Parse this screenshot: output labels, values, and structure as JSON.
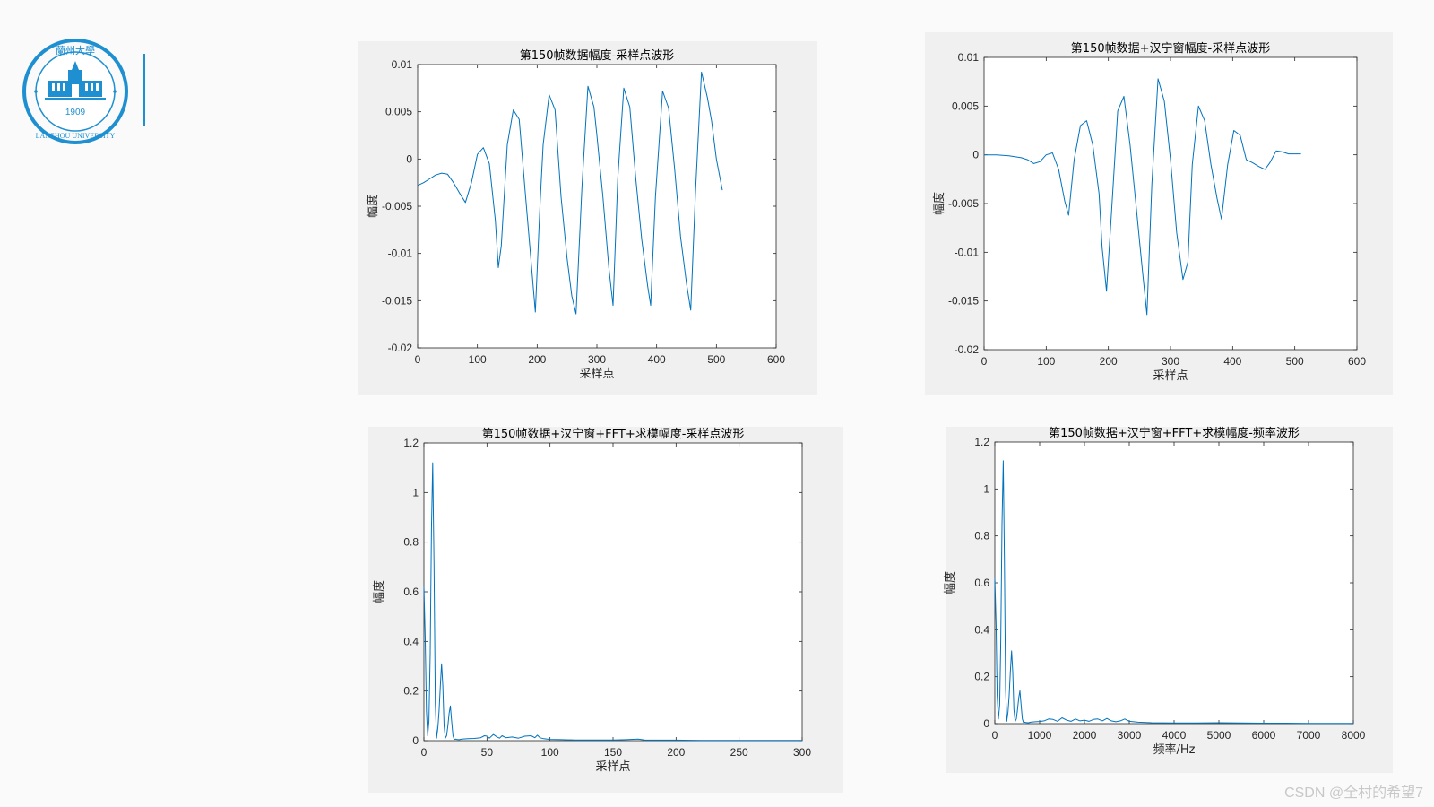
{
  "logo": {
    "name_cn": "蘭州大學",
    "name_en": "LANZHOU UNIVERSITY",
    "year": "1909",
    "color": "#1e8fd0"
  },
  "watermark": "CSDN @全村的希望7",
  "line_color": "#0072bd",
  "chart_data": [
    {
      "type": "line",
      "title": "第150帧数据幅度-采样点波形",
      "xlabel": "采样点",
      "ylabel": "幅度",
      "xlim": [
        0,
        600
      ],
      "ylim": [
        -0.02,
        0.01
      ],
      "xticks": [
        "0",
        "100",
        "200",
        "300",
        "400",
        "500",
        "600"
      ],
      "yticks": [
        "-0.02",
        "-0.015",
        "-0.01",
        "-0.005",
        "0",
        "0.005",
        "0.01"
      ],
      "series": [
        {
          "x": [
            0,
            10,
            20,
            30,
            40,
            50,
            60,
            70,
            80,
            90,
            100,
            110,
            120,
            130,
            135,
            140,
            150,
            160,
            170,
            180,
            190,
            197,
            205,
            210,
            220,
            230,
            240,
            250,
            258,
            265,
            275,
            285,
            295,
            300,
            310,
            320,
            327,
            335,
            345,
            355,
            365,
            375,
            385,
            390,
            398,
            410,
            420,
            430,
            440,
            450,
            457,
            465,
            475,
            485,
            492,
            500,
            510
          ],
          "y": [
            -0.0028,
            -0.0025,
            -0.0021,
            -0.0017,
            -0.0015,
            -0.0016,
            -0.0025,
            -0.0036,
            -0.0046,
            -0.0025,
            0.0005,
            0.0012,
            -0.0005,
            -0.0065,
            -0.0115,
            -0.0092,
            0.0015,
            0.0052,
            0.0042,
            -0.0035,
            -0.011,
            -0.0162,
            -0.0045,
            0.0015,
            0.0068,
            0.0052,
            -0.004,
            -0.0105,
            -0.0145,
            -0.0164,
            -0.003,
            0.0077,
            0.0055,
            0.0025,
            -0.004,
            -0.0115,
            -0.0155,
            -0.002,
            0.0075,
            0.0055,
            -0.002,
            -0.0085,
            -0.0135,
            -0.0155,
            -0.004,
            0.0072,
            0.0054,
            -0.001,
            -0.0082,
            -0.0132,
            -0.016,
            -0.0035,
            0.0092,
            0.0065,
            0.004,
            0.0,
            -0.0033
          ]
        }
      ]
    },
    {
      "type": "line",
      "title": "第150帧数据+汉宁窗幅度-采样点波形",
      "xlabel": "采样点",
      "ylabel": "幅度",
      "xlim": [
        0,
        600
      ],
      "ylim": [
        -0.02,
        0.01
      ],
      "xticks": [
        "0",
        "100",
        "200",
        "300",
        "400",
        "500",
        "600"
      ],
      "yticks": [
        "-0.02",
        "-0.015",
        "-0.01",
        "-0.005",
        "0",
        "0.005",
        "0.01"
      ],
      "series": [
        {
          "x": [
            0,
            20,
            40,
            60,
            70,
            80,
            90,
            100,
            110,
            120,
            130,
            136,
            145,
            155,
            165,
            175,
            185,
            190,
            197,
            205,
            215,
            225,
            235,
            245,
            255,
            262,
            270,
            280,
            290,
            300,
            310,
            320,
            328,
            335,
            345,
            355,
            365,
            375,
            382,
            392,
            402,
            412,
            422,
            432,
            442,
            452,
            460,
            470,
            480,
            490,
            500,
            510
          ],
          "y": [
            0,
            0,
            -0.0001,
            -0.0003,
            -0.0005,
            -0.0009,
            -0.0007,
            0.0,
            0.0002,
            -0.0015,
            -0.0048,
            -0.0062,
            -0.0005,
            0.003,
            0.0035,
            0.001,
            -0.004,
            -0.0095,
            -0.014,
            -0.006,
            0.0045,
            0.006,
            0.001,
            -0.0055,
            -0.012,
            -0.0164,
            -0.003,
            0.0078,
            0.0055,
            -0.0005,
            -0.008,
            -0.0128,
            -0.011,
            -0.001,
            0.005,
            0.0035,
            -0.001,
            -0.0045,
            -0.0066,
            -0.001,
            0.0025,
            0.002,
            -0.0005,
            -0.0008,
            -0.0012,
            -0.0015,
            -0.0008,
            0.0004,
            0.0003,
            0.0001,
            0.0001,
            0.0001
          ]
        }
      ]
    },
    {
      "type": "line",
      "title": "第150帧数据+汉宁窗+FFT+求模幅度-采样点波形",
      "xlabel": "采样点",
      "ylabel": "幅度",
      "xlim": [
        0,
        300
      ],
      "ylim": [
        0,
        1.2
      ],
      "xticks": [
        "0",
        "50",
        "100",
        "150",
        "200",
        "250",
        "300"
      ],
      "yticks": [
        "0",
        "0.2",
        "0.4",
        "0.6",
        "0.8",
        "1",
        "1.2"
      ],
      "series": [
        {
          "x": [
            0,
            1,
            2,
            3,
            4,
            5,
            6,
            7,
            8,
            9,
            10,
            11,
            12,
            13,
            14,
            15,
            16,
            17,
            18,
            19,
            20,
            21,
            22,
            23,
            24,
            25,
            26,
            28,
            30,
            35,
            40,
            45,
            48,
            50,
            52,
            55,
            58,
            60,
            62,
            65,
            70,
            75,
            80,
            85,
            88,
            90,
            92,
            95,
            100,
            110,
            120,
            130,
            140,
            150,
            160,
            170,
            175,
            180,
            200,
            220,
            240,
            260,
            280,
            300
          ],
          "y": [
            0.62,
            0.42,
            0.12,
            0.02,
            0.08,
            0.35,
            0.85,
            1.12,
            0.7,
            0.15,
            0.01,
            0.05,
            0.12,
            0.22,
            0.31,
            0.22,
            0.06,
            0.01,
            0.02,
            0.06,
            0.11,
            0.14,
            0.08,
            0.02,
            0.005,
            0.006,
            0.005,
            0.004,
            0.006,
            0.008,
            0.009,
            0.012,
            0.02,
            0.018,
            0.01,
            0.025,
            0.015,
            0.01,
            0.02,
            0.012,
            0.015,
            0.01,
            0.018,
            0.02,
            0.012,
            0.022,
            0.012,
            0.008,
            0.005,
            0.004,
            0.003,
            0.003,
            0.003,
            0.003,
            0.004,
            0.006,
            0.003,
            0.002,
            0.002,
            0.001,
            0.001,
            0.001,
            0.001,
            0.001
          ]
        }
      ]
    },
    {
      "type": "line",
      "title": "第150帧数据+汉宁窗+FFT+求模幅度-频率波形",
      "xlabel": "频率/Hz",
      "ylabel": "幅度",
      "xlim": [
        0,
        8000
      ],
      "ylim": [
        0,
        1.2
      ],
      "xticks": [
        "0",
        "1000",
        "2000",
        "3000",
        "4000",
        "5000",
        "6000",
        "7000",
        "8000"
      ],
      "yticks": [
        "0",
        "0.2",
        "0.4",
        "0.6",
        "0.8",
        "1",
        "1.2"
      ],
      "series": [
        {
          "x": [
            0,
            27,
            53,
            80,
            107,
            133,
            160,
            187,
            213,
            240,
            267,
            293,
            320,
            347,
            373,
            400,
            427,
            453,
            480,
            507,
            533,
            560,
            587,
            613,
            640,
            667,
            693,
            750,
            800,
            900,
            1000,
            1100,
            1200,
            1300,
            1400,
            1500,
            1600,
            1700,
            1800,
            1900,
            2000,
            2100,
            2200,
            2300,
            2400,
            2500,
            2600,
            2700,
            2800,
            2900,
            3000,
            3200,
            3500,
            4000,
            4500,
            5000,
            5500,
            6000,
            6500,
            7000,
            7500,
            8000
          ],
          "y": [
            0.62,
            0.42,
            0.12,
            0.02,
            0.08,
            0.35,
            0.85,
            1.12,
            0.7,
            0.15,
            0.01,
            0.05,
            0.12,
            0.22,
            0.31,
            0.22,
            0.06,
            0.01,
            0.02,
            0.06,
            0.11,
            0.14,
            0.08,
            0.02,
            0.005,
            0.006,
            0.005,
            0.004,
            0.006,
            0.008,
            0.009,
            0.012,
            0.02,
            0.018,
            0.01,
            0.025,
            0.015,
            0.01,
            0.02,
            0.012,
            0.015,
            0.01,
            0.018,
            0.02,
            0.012,
            0.022,
            0.012,
            0.008,
            0.012,
            0.02,
            0.01,
            0.006,
            0.004,
            0.003,
            0.003,
            0.004,
            0.003,
            0.002,
            0.002,
            0.001,
            0.001,
            0.001
          ]
        }
      ]
    }
  ]
}
